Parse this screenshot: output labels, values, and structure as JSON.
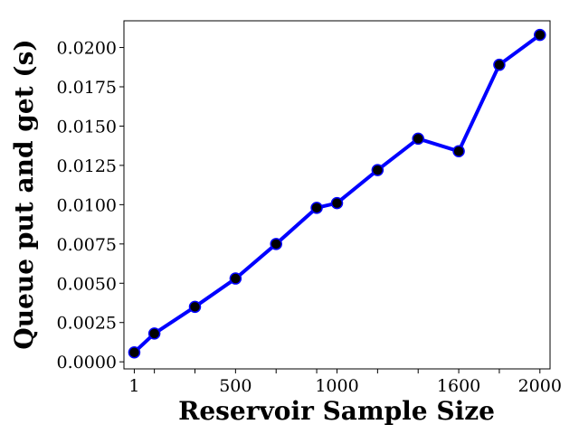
{
  "chart_data": {
    "type": "line",
    "title": "",
    "xlabel": "Reservoir Sample Size",
    "ylabel": "Queue put and get (s)",
    "xlim": [
      -50,
      2050
    ],
    "ylim": [
      -0.00045,
      0.0217
    ],
    "x_ticks": [
      1,
      100,
      300,
      500,
      700,
      900,
      1000,
      1200,
      1400,
      1600,
      1800,
      2000
    ],
    "x_tick_labels": [
      "1",
      "",
      "",
      "500",
      "",
      "",
      "1000",
      "",
      "",
      "1600",
      "",
      "2000"
    ],
    "y_ticks": [
      0.0,
      0.0025,
      0.005,
      0.0075,
      0.01,
      0.0125,
      0.015,
      0.0175,
      0.02
    ],
    "y_tick_labels": [
      "0.0000",
      "0.0025",
      "0.0050",
      "0.0075",
      "0.0100",
      "0.0125",
      "0.0150",
      "0.0175",
      "0.0200"
    ],
    "grid": false,
    "series": [
      {
        "color": "#0000ff",
        "marker_color": "#000000",
        "x": [
          1,
          100,
          300,
          500,
          700,
          900,
          1000,
          1200,
          1400,
          1600,
          1800,
          2000
        ],
        "values": [
          0.0006,
          0.0018,
          0.0035,
          0.0053,
          0.0075,
          0.0098,
          0.0101,
          0.0122,
          0.0142,
          0.0134,
          0.0189,
          0.0208
        ]
      }
    ]
  }
}
